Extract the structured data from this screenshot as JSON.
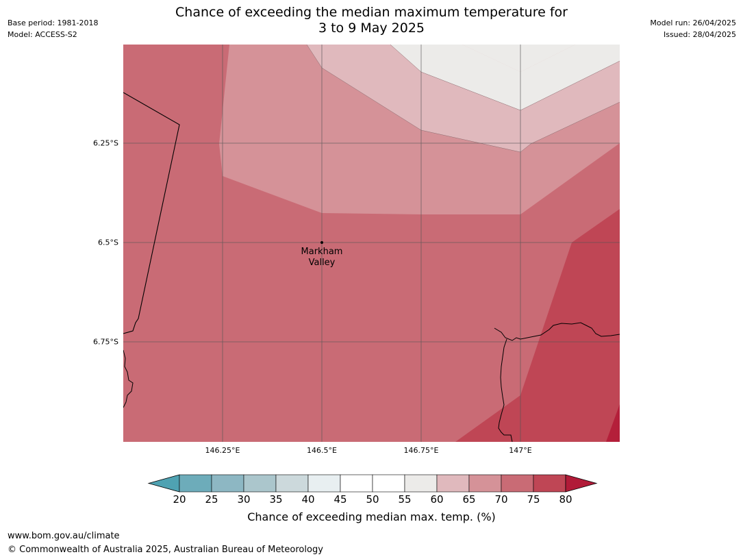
{
  "header": {
    "base_period": "Base period: 1981-2018",
    "model": "Model: ACCESS-S2",
    "title_line1": "Chance of exceeding the median maximum temperature for",
    "title_line2": "3 to 9 May 2025",
    "model_run": "Model run: 26/04/2025",
    "issued": "Issued: 28/04/2025"
  },
  "map": {
    "lat_labels": [
      "6.25°S",
      "6.5°S",
      "6.75°S"
    ],
    "lon_labels": [
      "146.25°E",
      "146.5°E",
      "146.75°E",
      "147°E"
    ],
    "place": {
      "name_line1": "Markham",
      "name_line2": "Valley",
      "lon": 146.5,
      "lat": -6.5
    },
    "classes": [
      {
        "range": "55-60",
        "color": "#ecebe9"
      },
      {
        "range": "60-65",
        "color": "#e0b9bd"
      },
      {
        "range": "65-70",
        "color": "#d59298"
      },
      {
        "range": "70-75",
        "color": "#c96b75"
      },
      {
        "range": "75-80",
        "color": "#bf4655"
      },
      {
        "range": ">80",
        "color": "#b41f3a"
      }
    ]
  },
  "colorbar": {
    "ticks": [
      "20",
      "25",
      "30",
      "35",
      "40",
      "45",
      "50",
      "55",
      "60",
      "65",
      "70",
      "75",
      "80"
    ],
    "under_color": "#4fa2b2",
    "over_color": "#b11b38",
    "colors": [
      "#6dacba",
      "#8db7c3",
      "#abc6cc",
      "#ccd9dc",
      "#e8eff1",
      "#ffffff",
      "#ffffff",
      "#ecebe9",
      "#e0b9bd",
      "#d59298",
      "#c96b75",
      "#bf4655"
    ],
    "label": "Chance of exceeding median max. temp. (%)"
  },
  "footer": {
    "url": "www.bom.gov.au/climate",
    "copyright": "© Commonwealth of Australia 2025, Australian Bureau of Meteorology"
  }
}
